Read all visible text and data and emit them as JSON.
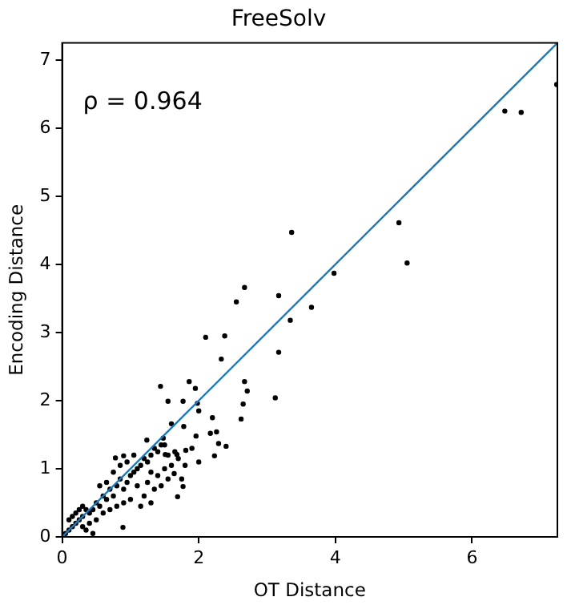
{
  "chart_data": {
    "type": "scatter",
    "title": "FreeSolv",
    "xlabel": "OT Distance",
    "ylabel": "Encoding Distance",
    "annotations": [
      "ρ = 0.964"
    ],
    "xlim": [
      0,
      7.25
    ],
    "ylim": [
      0,
      7.25
    ],
    "xticks": [
      0,
      2,
      4,
      6
    ],
    "yticks": [
      0,
      1,
      2,
      3,
      4,
      5,
      6,
      7
    ],
    "grid": false,
    "legend": false,
    "marker": "circle",
    "series": [
      {
        "color": "#000000",
        "x": [
          6.48,
          6.72,
          7.24,
          4.93,
          5.05,
          3.36,
          3.98,
          3.65,
          3.34,
          3.17,
          3.17,
          2.67,
          2.55,
          2.67,
          2.1,
          2.38,
          2.33,
          1.44,
          1.86,
          1.95,
          2.71,
          3.12,
          2.65,
          2.62,
          1.55,
          1.77,
          1.98,
          2.0,
          1.6,
          1.78,
          2.2,
          1.96,
          2.17,
          2.26,
          2.29,
          2.4,
          2.23,
          1.24,
          1.48,
          1.81,
          1.68,
          1.51,
          0.78,
          0.9,
          1.64,
          1.77,
          1.69,
          0.89,
          1.45,
          1.4,
          1.35,
          1.3,
          1.25,
          1.2,
          1.15,
          1.1,
          1.05,
          1.0,
          1.3,
          1.4,
          1.5,
          1.55,
          1.45,
          1.35,
          1.25,
          1.2,
          1.15,
          1.3,
          1.1,
          0.95,
          0.9,
          0.85,
          0.8,
          0.75,
          0.7,
          0.65,
          0.6,
          0.55,
          0.5,
          0.45,
          0.4,
          0.35,
          0.3,
          0.25,
          0.2,
          0.15,
          0.1,
          0.05,
          0.2,
          0.3,
          0.4,
          0.5,
          0.6,
          0.7,
          0.8,
          0.9,
          1.0,
          0.55,
          0.65,
          0.75,
          0.85,
          0.95,
          1.05,
          1.6,
          1.7,
          1.8,
          1.75,
          1.65,
          1.5,
          0.35,
          0.45,
          0.25,
          0.15,
          0.1,
          0.3,
          1.55,
          1.9,
          2.0
        ],
        "values": [
          6.25,
          6.23,
          6.64,
          4.61,
          4.02,
          4.47,
          3.87,
          3.37,
          3.18,
          3.54,
          2.71,
          3.66,
          3.45,
          2.28,
          2.93,
          2.95,
          2.61,
          2.21,
          2.28,
          2.18,
          2.14,
          2.04,
          1.95,
          1.73,
          1.99,
          1.99,
          1.96,
          1.85,
          1.66,
          1.62,
          1.75,
          1.48,
          1.52,
          1.54,
          1.37,
          1.33,
          1.19,
          1.42,
          1.45,
          1.27,
          1.21,
          1.21,
          1.16,
          1.19,
          0.93,
          0.74,
          0.59,
          0.14,
          1.35,
          1.25,
          1.3,
          1.2,
          1.1,
          1.15,
          1.05,
          1.0,
          0.95,
          0.9,
          0.95,
          0.9,
          1.0,
          0.85,
          0.75,
          0.7,
          0.8,
          0.6,
          0.45,
          0.5,
          0.75,
          0.8,
          0.7,
          0.85,
          0.75,
          0.6,
          0.7,
          0.55,
          0.6,
          0.45,
          0.5,
          0.4,
          0.35,
          0.4,
          0.3,
          0.25,
          0.2,
          0.15,
          0.1,
          0.05,
          0.35,
          0.15,
          0.2,
          0.25,
          0.35,
          0.4,
          0.45,
          0.5,
          0.55,
          0.75,
          0.8,
          0.95,
          1.05,
          1.1,
          1.2,
          1.05,
          1.15,
          1.05,
          0.85,
          1.25,
          1.35,
          0.1,
          0.05,
          0.4,
          0.3,
          0.25,
          0.45,
          1.2,
          1.3,
          1.1
        ]
      },
      {
        "type": "line",
        "color": "#1f77b4",
        "x": [
          0,
          7.25
        ],
        "values": [
          0,
          7.25
        ],
        "marker": "none",
        "line_style": "solid"
      }
    ]
  }
}
